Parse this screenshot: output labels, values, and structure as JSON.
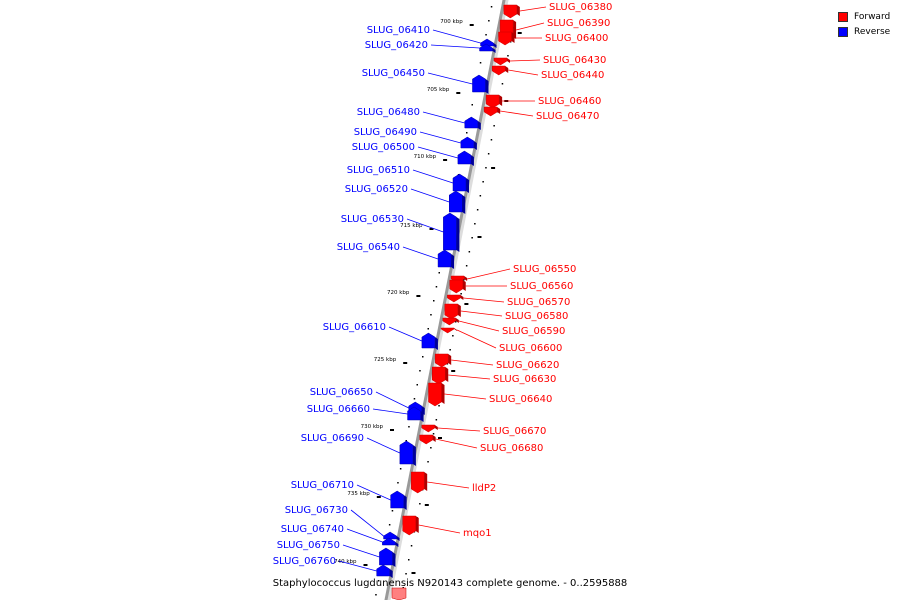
{
  "colors": {
    "forward": "#ff0000",
    "reverse": "#0000ff",
    "axis": "#999999",
    "tick": "#000000"
  },
  "legend": [
    {
      "label": "Forward",
      "strand": "forward"
    },
    {
      "label": "Reverse",
      "strand": "reverse"
    }
  ],
  "caption": "Staphylococcus lugdunensis N920143 complete genome. - 0..2595888",
  "ticks": [
    "700 kbp",
    "705 kbp",
    "710 kbp",
    "715 kbp",
    "720 kbp",
    "725 kbp",
    "730 kbp",
    "735 kbp",
    "740 kbp"
  ],
  "genes": [
    {
      "label": "SLUG_06380",
      "strand": "forward"
    },
    {
      "label": "SLUG_06390",
      "strand": "forward"
    },
    {
      "label": "SLUG_06400",
      "strand": "forward"
    },
    {
      "label": "SLUG_06410",
      "strand": "reverse"
    },
    {
      "label": "SLUG_06420",
      "strand": "reverse"
    },
    {
      "label": "SLUG_06430",
      "strand": "forward"
    },
    {
      "label": "SLUG_06440",
      "strand": "forward"
    },
    {
      "label": "SLUG_06450",
      "strand": "reverse"
    },
    {
      "label": "SLUG_06460",
      "strand": "forward"
    },
    {
      "label": "SLUG_06470",
      "strand": "forward"
    },
    {
      "label": "SLUG_06480",
      "strand": "reverse"
    },
    {
      "label": "SLUG_06490",
      "strand": "reverse"
    },
    {
      "label": "SLUG_06500",
      "strand": "reverse"
    },
    {
      "label": "SLUG_06510",
      "strand": "reverse"
    },
    {
      "label": "SLUG_06520",
      "strand": "reverse"
    },
    {
      "label": "SLUG_06530",
      "strand": "reverse"
    },
    {
      "label": "SLUG_06540",
      "strand": "reverse"
    },
    {
      "label": "SLUG_06550",
      "strand": "forward"
    },
    {
      "label": "SLUG_06560",
      "strand": "forward"
    },
    {
      "label": "SLUG_06570",
      "strand": "forward"
    },
    {
      "label": "SLUG_06580",
      "strand": "forward"
    },
    {
      "label": "SLUG_06590",
      "strand": "forward"
    },
    {
      "label": "SLUG_06600",
      "strand": "forward"
    },
    {
      "label": "SLUG_06610",
      "strand": "reverse"
    },
    {
      "label": "SLUG_06620",
      "strand": "forward"
    },
    {
      "label": "SLUG_06630",
      "strand": "forward"
    },
    {
      "label": "SLUG_06640",
      "strand": "forward"
    },
    {
      "label": "SLUG_06650",
      "strand": "reverse"
    },
    {
      "label": "SLUG_06660",
      "strand": "reverse"
    },
    {
      "label": "SLUG_06670",
      "strand": "forward"
    },
    {
      "label": "SLUG_06680",
      "strand": "forward"
    },
    {
      "label": "SLUG_06690",
      "strand": "reverse"
    },
    {
      "label": "lldP2",
      "strand": "forward"
    },
    {
      "label": "SLUG_06710",
      "strand": "reverse"
    },
    {
      "label": "SLUG_06730",
      "strand": "reverse"
    },
    {
      "label": "SLUG_06740",
      "strand": "reverse"
    },
    {
      "label": "mqo1",
      "strand": "forward"
    },
    {
      "label": "SLUG_06750",
      "strand": "reverse"
    },
    {
      "label": "SLUG_06760",
      "strand": "reverse"
    }
  ]
}
